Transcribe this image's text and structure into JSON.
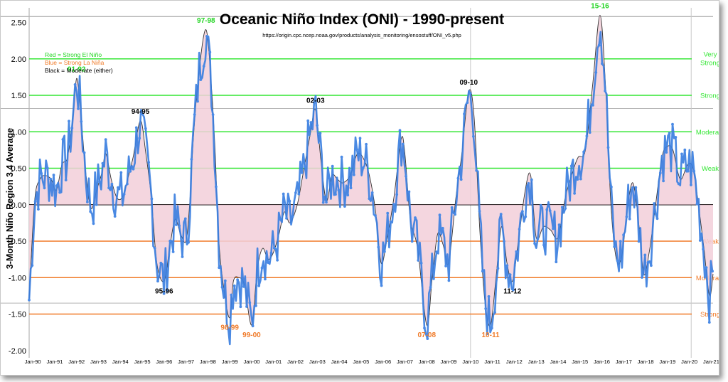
{
  "chart_data": {
    "type": "line",
    "title": "Oceanic Niño Index (ONI) - 1990-present",
    "subtitle": "https://origin.cpc.ncep.noaa.gov/products/analysis_monitoring/ensostuff/ONI_v5.php",
    "ylabel": "3-Month Niño Region 3.4 Average",
    "ylim": [
      -2.1,
      2.7
    ],
    "yticks": [
      "2.50",
      "2.00",
      "1.50",
      "1.00",
      "0.50",
      "0.00",
      "-0.50",
      "-1.00",
      "-1.50",
      "-2.00"
    ],
    "xlim": [
      "1989-11",
      "2021-02"
    ],
    "xticks": [
      "Jan-90",
      "Jan-91",
      "Jan-92",
      "Jan-93",
      "Jan-94",
      "Jan-95",
      "Jan-96",
      "Jan-97",
      "Jan-98",
      "Jan-99",
      "Jan-00",
      "Jan-01",
      "Jan-02",
      "Jan-03",
      "Jan-04",
      "Jan-05",
      "Jan-06",
      "Jan-07",
      "Jan-08",
      "Jan-09",
      "Jan-10",
      "Jan-11",
      "Jan-12",
      "Jan-13",
      "Jan-14",
      "Jan-15",
      "Jan-16",
      "Jan-17",
      "Jan-18",
      "Jan-19",
      "Jan-20",
      "Jan-21"
    ],
    "legend": [
      {
        "text": "Red = Strong  El Niño",
        "color": "#22d422"
      },
      {
        "text": "Blue = Strong  La Niña",
        "color": "#f07a28"
      },
      {
        "text": "Black = Moderate  (either)",
        "color": "#000000"
      }
    ],
    "thresholds": [
      {
        "value": 2.0,
        "label": "Very Strong",
        "color": "#33e633"
      },
      {
        "value": 1.5,
        "label": "Strong",
        "color": "#33e633"
      },
      {
        "value": 1.0,
        "label": "Moderate",
        "color": "#33e633"
      },
      {
        "value": 0.5,
        "label": "Weak",
        "color": "#33e633"
      },
      {
        "value": -0.5,
        "label": "Weak",
        "color": "#f07a28"
      },
      {
        "value": -1.0,
        "label": "Moderate",
        "color": "#f07a28"
      },
      {
        "value": -1.5,
        "label": "Strong",
        "color": "#f07a28"
      }
    ],
    "events": [
      {
        "label": "91-92",
        "date": "1992-01",
        "value": 1.73,
        "color": "#22d422"
      },
      {
        "label": "94-95",
        "date": "1994-12",
        "value": 1.15,
        "color": "#000000"
      },
      {
        "label": "95-96",
        "date": "1996-01",
        "value": -1.05,
        "color": "#000000"
      },
      {
        "label": "97-98",
        "date": "1997-12",
        "value": 2.4,
        "color": "#22d422"
      },
      {
        "label": "98-99",
        "date": "1999-01",
        "value": -1.55,
        "color": "#f07a28"
      },
      {
        "label": "99-00",
        "date": "2000-01",
        "value": -1.65,
        "color": "#f07a28"
      },
      {
        "label": "02-03",
        "date": "2002-12",
        "value": 1.3,
        "color": "#000000"
      },
      {
        "label": "07-08",
        "date": "2008-01",
        "value": -1.65,
        "color": "#f07a28"
      },
      {
        "label": "09-10",
        "date": "2009-12",
        "value": 1.55,
        "color": "#000000"
      },
      {
        "label": "10-11",
        "date": "2010-12",
        "value": -1.65,
        "color": "#f07a28"
      },
      {
        "label": "11-12",
        "date": "2011-12",
        "value": -1.05,
        "color": "#000000"
      },
      {
        "label": "15-16",
        "date": "2015-12",
        "value": 2.6,
        "color": "#22d422"
      }
    ],
    "series": [
      {
        "color": "#3b7fdf",
        "points": [
          [
            "1989-11",
            -1.3
          ],
          [
            "1990-02",
            0.05
          ],
          [
            "1990-05",
            0.35
          ],
          [
            "1990-08",
            0.4
          ],
          [
            "1990-11",
            0.35
          ],
          [
            "1991-02",
            0.2
          ],
          [
            "1991-05",
            0.55
          ],
          [
            "1991-08",
            0.65
          ],
          [
            "1991-11",
            1.2
          ],
          [
            "1992-01",
            1.73
          ],
          [
            "1992-03",
            1.35
          ],
          [
            "1992-06",
            0.45
          ],
          [
            "1992-09",
            -0.05
          ],
          [
            "1992-12",
            0.2
          ],
          [
            "1993-03",
            0.45
          ],
          [
            "1993-05",
            0.7
          ],
          [
            "1993-08",
            0.35
          ],
          [
            "1993-11",
            0.1
          ],
          [
            "1994-02",
            0.1
          ],
          [
            "1994-05",
            0.35
          ],
          [
            "1994-08",
            0.65
          ],
          [
            "1994-12",
            1.15
          ],
          [
            "1995-03",
            0.7
          ],
          [
            "1995-06",
            0.1
          ],
          [
            "1995-09",
            -0.8
          ],
          [
            "1996-01",
            -1.05
          ],
          [
            "1996-04",
            -0.6
          ],
          [
            "1996-07",
            -0.2
          ],
          [
            "1996-10",
            -0.4
          ],
          [
            "1997-01",
            -0.5
          ],
          [
            "1997-03",
            0.0
          ],
          [
            "1997-05",
            0.9
          ],
          [
            "1997-08",
            1.8
          ],
          [
            "1997-12",
            2.4
          ],
          [
            "1998-03",
            1.6
          ],
          [
            "1998-05",
            0.7
          ],
          [
            "1998-07",
            -0.5
          ],
          [
            "1998-10",
            -1.2
          ],
          [
            "1999-01",
            -1.55
          ],
          [
            "1999-03",
            -1.05
          ],
          [
            "1999-06",
            -1.0
          ],
          [
            "1999-09",
            -1.1
          ],
          [
            "2000-01",
            -1.65
          ],
          [
            "2000-04",
            -0.9
          ],
          [
            "2000-07",
            -0.6
          ],
          [
            "2000-10",
            -0.75
          ],
          [
            "2001-01",
            -0.65
          ],
          [
            "2001-04",
            -0.4
          ],
          [
            "2001-07",
            -0.1
          ],
          [
            "2001-10",
            -0.25
          ],
          [
            "2002-02",
            0.0
          ],
          [
            "2002-05",
            0.4
          ],
          [
            "2002-09",
            0.95
          ],
          [
            "2002-12",
            1.3
          ],
          [
            "2003-03",
            0.6
          ],
          [
            "2003-06",
            0.05
          ],
          [
            "2003-09",
            0.4
          ],
          [
            "2003-12",
            0.35
          ],
          [
            "2004-03",
            0.3
          ],
          [
            "2004-07",
            0.4
          ],
          [
            "2004-11",
            0.7
          ],
          [
            "2005-03",
            0.6
          ],
          [
            "2005-06",
            0.35
          ],
          [
            "2005-09",
            -0.1
          ],
          [
            "2005-12",
            -0.8
          ],
          [
            "2006-03",
            -0.5
          ],
          [
            "2006-07",
            0.1
          ],
          [
            "2006-11",
            0.9
          ],
          [
            "2007-01",
            0.7
          ],
          [
            "2007-04",
            -0.2
          ],
          [
            "2007-08",
            -0.6
          ],
          [
            "2008-01",
            -1.65
          ],
          [
            "2008-04",
            -1.0
          ],
          [
            "2008-07",
            -0.4
          ],
          [
            "2008-10",
            -0.55
          ],
          [
            "2009-01",
            -0.8
          ],
          [
            "2009-05",
            0.1
          ],
          [
            "2009-08",
            0.65
          ],
          [
            "2009-12",
            1.55
          ],
          [
            "2010-03",
            1.2
          ],
          [
            "2010-06",
            -0.3
          ],
          [
            "2010-09",
            -1.35
          ],
          [
            "2010-12",
            -1.65
          ],
          [
            "2011-03",
            -1.0
          ],
          [
            "2011-06",
            -0.3
          ],
          [
            "2011-09",
            -0.8
          ],
          [
            "2011-12",
            -1.05
          ],
          [
            "2012-03",
            -0.55
          ],
          [
            "2012-07",
            0.2
          ],
          [
            "2012-10",
            0.4
          ],
          [
            "2013-01",
            -0.45
          ],
          [
            "2013-05",
            -0.3
          ],
          [
            "2013-09",
            -0.35
          ],
          [
            "2014-01",
            -0.45
          ],
          [
            "2014-05",
            0.1
          ],
          [
            "2014-09",
            0.45
          ],
          [
            "2014-12",
            0.65
          ],
          [
            "2015-04",
            0.75
          ],
          [
            "2015-08",
            1.65
          ],
          [
            "2015-12",
            2.6
          ],
          [
            "2016-03",
            1.65
          ],
          [
            "2016-06",
            0.0
          ],
          [
            "2016-09",
            -0.75
          ],
          [
            "2016-12",
            -0.7
          ],
          [
            "2017-03",
            -0.05
          ],
          [
            "2017-06",
            0.3
          ],
          [
            "2017-09",
            -0.2
          ],
          [
            "2017-12",
            -0.95
          ],
          [
            "2018-03",
            -0.65
          ],
          [
            "2018-06",
            -0.1
          ],
          [
            "2018-10",
            0.65
          ],
          [
            "2019-01",
            0.8
          ],
          [
            "2019-04",
            0.75
          ],
          [
            "2019-08",
            0.35
          ],
          [
            "2019-12",
            0.55
          ],
          [
            "2020-03",
            0.5
          ],
          [
            "2020-06",
            0.0
          ],
          [
            "2020-09",
            -0.6
          ],
          [
            "2020-12",
            -1.25
          ],
          [
            "2021-02",
            -0.95
          ]
        ]
      }
    ]
  }
}
